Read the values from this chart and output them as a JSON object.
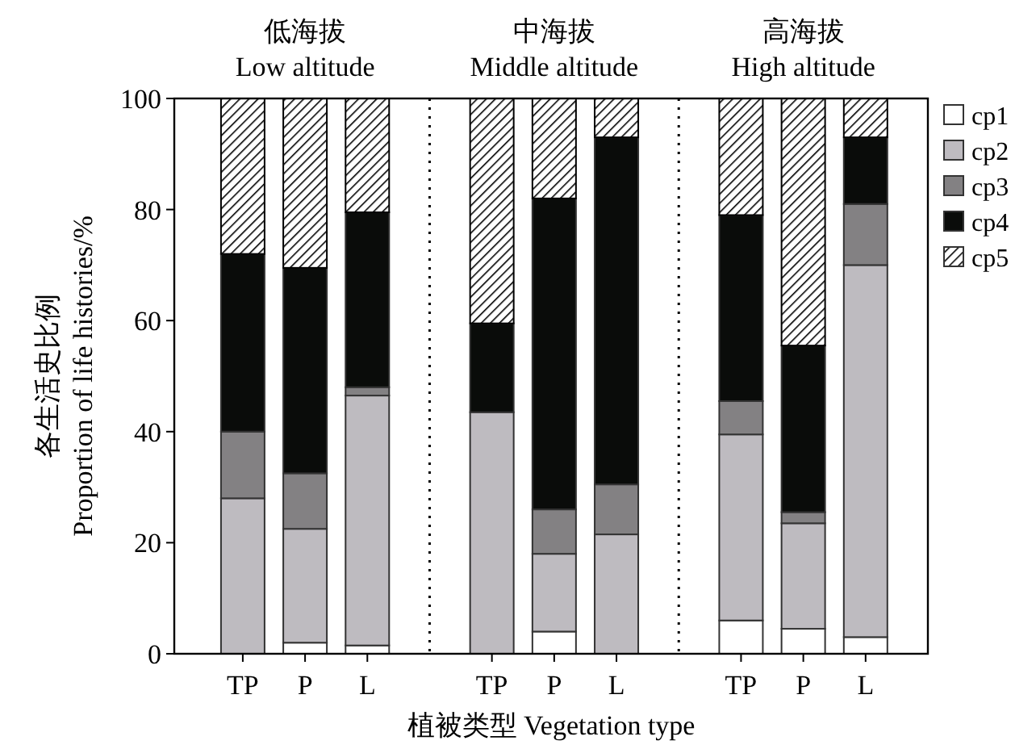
{
  "chart_data": {
    "type": "bar",
    "stacked": true,
    "xlabel": "植被类型 Vegetation type",
    "ylabel": "各生活史比例\nProportion of life histories/%",
    "categories": [
      "TP",
      "P",
      "L",
      null,
      "TP",
      "P",
      "L",
      null,
      "TP",
      "P",
      "L"
    ],
    "annotations": [
      "低海拔\nLow altitude",
      "中海拔\nMiddle altitude",
      "高海拔\nHigh altitude"
    ],
    "series": [
      {
        "name": "cp1",
        "color": "#ffffff",
        "values": [
          0,
          2,
          1.5,
          null,
          0,
          4,
          0,
          null,
          6,
          4.5,
          3
        ]
      },
      {
        "name": "cp2",
        "color": "#bebbc0",
        "values": [
          28,
          20.5,
          45,
          null,
          43.5,
          14,
          21.5,
          null,
          33.5,
          19,
          67
        ]
      },
      {
        "name": "cp3",
        "color": "#838183",
        "values": [
          12,
          10,
          1.5,
          null,
          0,
          8,
          9,
          null,
          6,
          2,
          11
        ]
      },
      {
        "name": "cp4",
        "color": "#0a0c0a",
        "values": [
          32,
          37,
          31.5,
          null,
          16,
          56,
          62.5,
          null,
          33.5,
          30,
          12
        ]
      },
      {
        "name": "cp5",
        "color": "#000000",
        "values": [
          28,
          30.5,
          20.5,
          null,
          40.5,
          18,
          7,
          null,
          21,
          44.5,
          7
        ]
      }
    ],
    "ylim": [
      0,
      100
    ],
    "yticks": [
      0,
      20,
      40,
      60,
      80,
      100
    ],
    "legend": "right",
    "grid": "x"
  }
}
